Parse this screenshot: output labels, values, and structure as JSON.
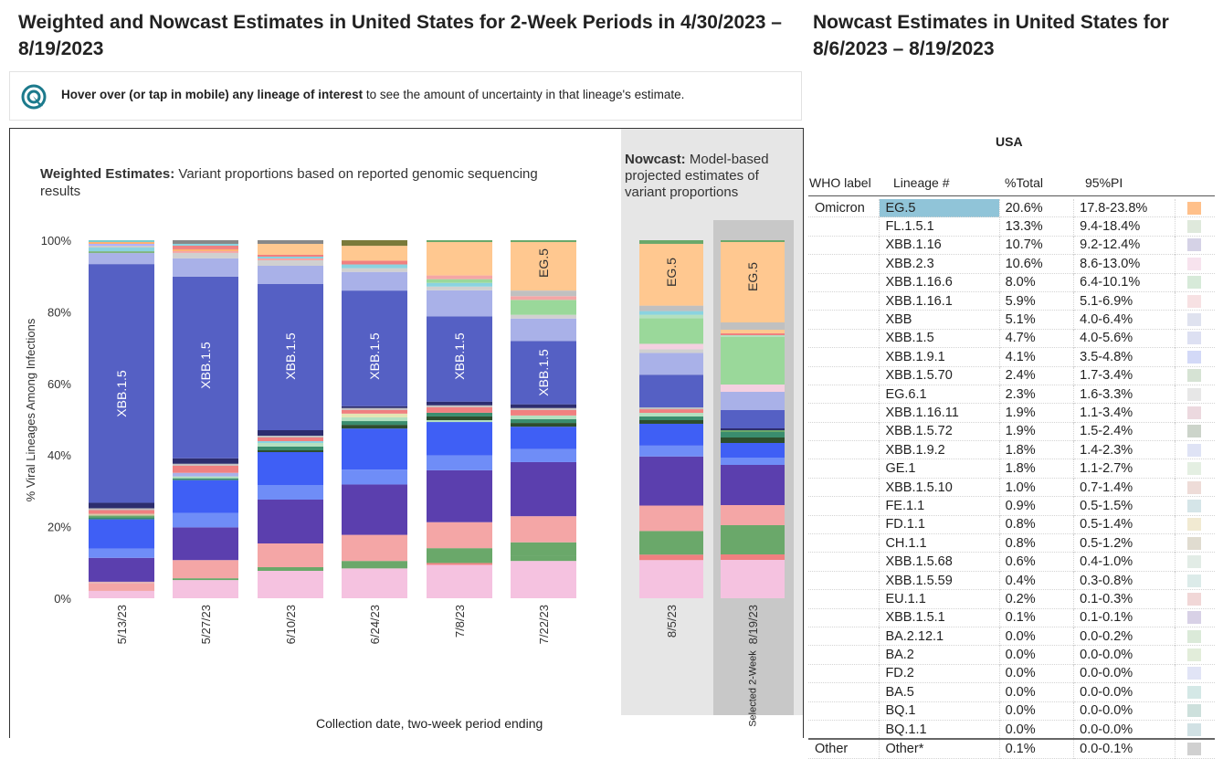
{
  "header": {
    "left_title": "Weighted and Nowcast Estimates in United States for 2-Week Periods in 4/30/2023 – 8/19/2023",
    "right_title": "Nowcast Estimates in United States for 8/6/2023 – 8/19/2023"
  },
  "hover_hint": {
    "bold": "Hover over (or tap in mobile) any lineage of interest",
    "rest": " to see the amount of uncertainty in that lineage's estimate."
  },
  "chart_data": {
    "type": "bar",
    "stacked": true,
    "title": "Weighted Estimates: Variant proportions based on reported genomic sequencing results",
    "weighted_title_bold": "Weighted Estimates:",
    "weighted_title_rest": " Variant proportions based on reported genomic sequencing results",
    "nowcast_title_bold": "Nowcast:",
    "nowcast_title_rest": " Model-based projected estimates of variant proportions",
    "xlabel": "Collection date, two-week period ending",
    "ylabel": "% Viral Lineages Among Infections",
    "ylim": [
      0,
      100
    ],
    "yticks": [
      "0%",
      "20%",
      "40%",
      "60%",
      "80%",
      "100%"
    ],
    "selected_label": "Selected 2-Week",
    "categories": [
      "5/13/23",
      "5/27/23",
      "6/10/23",
      "6/24/23",
      "7/8/23",
      "7/22/23",
      "8/5/23",
      "8/19/23"
    ],
    "nowcast_categories": [
      "8/5/23",
      "8/19/23"
    ],
    "bars": [
      {
        "label": "5/13/23",
        "segments": [
          [
            "#f5c2e0",
            2
          ],
          [
            "#f4a6a6",
            2
          ],
          [
            "#e5b3b3",
            0.5
          ],
          [
            "#5b3fae",
            6.5
          ],
          [
            "#6f8df7",
            2.5
          ],
          [
            "#3f5ff5",
            8
          ],
          [
            "#3a8d6e",
            0.5
          ],
          [
            "#6aa86a",
            0.5
          ],
          [
            "#d9c8a8",
            0.5
          ],
          [
            "#f08080",
            1
          ],
          [
            "#c0c0c0",
            0.5
          ],
          [
            "#2d2d6e",
            1.5
          ],
          [
            "#5560c4",
            65
          ],
          [
            "#a9b1e8",
            3
          ],
          [
            "#7fb47f",
            0.5
          ],
          [
            "#8ad3e0",
            1
          ],
          [
            "#cccccc",
            0.5
          ],
          [
            "#b0b0ff",
            0.5
          ],
          [
            "#ffb070",
            0.5
          ],
          [
            "#7cc",
            0.5
          ]
        ],
        "inner_label": "XBB.1.5"
      },
      {
        "label": "5/27/23",
        "segments": [
          [
            "#f5c2e0",
            5
          ],
          [
            "#6aa86a",
            0.5
          ],
          [
            "#f4a6a6",
            5
          ],
          [
            "#5b3fae",
            9
          ],
          [
            "#6f8df7",
            4
          ],
          [
            "#3f5ff5",
            9
          ],
          [
            "#3a8d6e",
            0.5
          ],
          [
            "#b3e0c0",
            0.5
          ],
          [
            "#a9b1e8",
            1
          ],
          [
            "#f08080",
            2
          ],
          [
            "#c0c0c0",
            0.5
          ],
          [
            "#2d2d6e",
            1.5
          ],
          [
            "#5560c4",
            50
          ],
          [
            "#a9b1e8",
            5
          ],
          [
            "#d0d0d0",
            1.5
          ],
          [
            "#f4a6a6",
            0.5
          ],
          [
            "#ffb070",
            0.5
          ],
          [
            "#f08080",
            1
          ],
          [
            "#8ad3e0",
            0.5
          ],
          [
            "#888",
            1
          ]
        ],
        "inner_label": "XBB.1.5"
      },
      {
        "label": "6/10/23",
        "segments": [
          [
            "#f5c2e0",
            7.5
          ],
          [
            "#6aa86a",
            1
          ],
          [
            "#f4a6a6",
            6.5
          ],
          [
            "#5b3fae",
            12
          ],
          [
            "#6f8df7",
            4
          ],
          [
            "#3f5ff5",
            9
          ],
          [
            "#2d4d2d",
            0.5
          ],
          [
            "#3a8d6e",
            1
          ],
          [
            "#b3e0c0",
            1
          ],
          [
            "#8ad3e0",
            0.5
          ],
          [
            "#f08080",
            1
          ],
          [
            "#c0c0c0",
            0.5
          ],
          [
            "#2d2d6e",
            1.5
          ],
          [
            "#5560c4",
            40
          ],
          [
            "#a9b1e8",
            5
          ],
          [
            "#d0d0d0",
            1.5
          ],
          [
            "#f4a6a6",
            0.5
          ],
          [
            "#8ad3e0",
            0.5
          ],
          [
            "#f08080",
            0.5
          ],
          [
            "#ffc890",
            3
          ],
          [
            "#888",
            1
          ]
        ],
        "inner_label": "XBB.1.5"
      },
      {
        "label": "6/24/23",
        "segments": [
          [
            "#f5c2e0",
            8
          ],
          [
            "#6aa86a",
            2
          ],
          [
            "#f4a6a6",
            7
          ],
          [
            "#5b3fae",
            13.5
          ],
          [
            "#6f8df7",
            4
          ],
          [
            "#3f5ff5",
            11
          ],
          [
            "#2d4d2d",
            1
          ],
          [
            "#3a8d6e",
            1
          ],
          [
            "#b3e0c0",
            1
          ],
          [
            "#e5e5b3",
            1
          ],
          [
            "#f08080",
            1
          ],
          [
            "#c0c0c0",
            0.5
          ],
          [
            "#2d2d6e",
            0.5
          ],
          [
            "#5560c4",
            31
          ],
          [
            "#a9b1e8",
            5
          ],
          [
            "#d0d0d0",
            1
          ],
          [
            "#8ad3e0",
            1
          ],
          [
            "#f08080",
            1
          ],
          [
            "#ffc890",
            4
          ],
          [
            "#7a7a3a",
            1.5
          ]
        ],
        "inner_label": "XBB.1.5"
      },
      {
        "label": "7/8/23",
        "segments": [
          [
            "#f5c2e0",
            9
          ],
          [
            "#f08080",
            0.5
          ],
          [
            "#6aa86a",
            4
          ],
          [
            "#f4a6a6",
            7
          ],
          [
            "#5b3fae",
            14
          ],
          [
            "#6f8df7",
            4
          ],
          [
            "#3f5ff5",
            9
          ],
          [
            "#b3e0c0",
            0.5
          ],
          [
            "#2d4d2d",
            1
          ],
          [
            "#3a8d6e",
            1
          ],
          [
            "#f08080",
            1.5
          ],
          [
            "#c0c0c0",
            0.5
          ],
          [
            "#2d2d6e",
            1
          ],
          [
            "#5560c4",
            23
          ],
          [
            "#a9b1e8",
            7
          ],
          [
            "#d0d0d0",
            1
          ],
          [
            "#8ad3e0",
            1
          ],
          [
            "#9ad89a",
            1
          ],
          [
            "#f4a6a6",
            1
          ],
          [
            "#ffc890",
            9
          ],
          [
            "#6aa86a",
            0.5
          ]
        ],
        "inner_label": "XBB.1.5"
      },
      {
        "label": "7/22/23",
        "segments": [
          [
            "#f5c2e0",
            10
          ],
          [
            "#6aa86a",
            1.5
          ],
          [
            "#6aa86a",
            3.5
          ],
          [
            "#f4a6a6",
            7
          ],
          [
            "#5b3fae",
            14.5
          ],
          [
            "#6f8df7",
            3.5
          ],
          [
            "#3f5ff5",
            6
          ],
          [
            "#2d4d2d",
            1
          ],
          [
            "#3a8d6e",
            1
          ],
          [
            "#b3e0c0",
            1
          ],
          [
            "#f08080",
            1.5
          ],
          [
            "#c0c0c0",
            0.5
          ],
          [
            "#2d2d6e",
            1
          ],
          [
            "#5560c4",
            17
          ],
          [
            "#a9b1e8",
            6
          ],
          [
            "#d0d0d0",
            1
          ],
          [
            "#9ad89a",
            4
          ],
          [
            "#f4a6a6",
            1
          ],
          [
            "#c0c0c0",
            1.5
          ],
          [
            "#ffc890",
            13
          ],
          [
            "#6aa86a",
            0.5
          ]
        ],
        "inner_label": "XBB.1.5",
        "top_label": "EG.5"
      },
      {
        "label": "8/5/23",
        "segments": [
          [
            "#f5c2e0",
            10.5
          ],
          [
            "#f08080",
            1.5
          ],
          [
            "#6aa86a",
            6.5
          ],
          [
            "#f4a6a6",
            7
          ],
          [
            "#5b3fae",
            13.5
          ],
          [
            "#6f8df7",
            3
          ],
          [
            "#3f5ff5",
            6
          ],
          [
            "#2d4d2d",
            1
          ],
          [
            "#3a8d6e",
            1
          ],
          [
            "#b3e0c0",
            1
          ],
          [
            "#f08080",
            1
          ],
          [
            "#c0c0c0",
            0.5
          ],
          [
            "#5560c4",
            9
          ],
          [
            "#a9b1e8",
            6
          ],
          [
            "#d0d0d0",
            1
          ],
          [
            "#f4d0e0",
            1.5
          ],
          [
            "#9ad89a",
            7
          ],
          [
            "#b3e0c0",
            1
          ],
          [
            "#8ad3e0",
            1
          ],
          [
            "#c0c0c0",
            1.5
          ],
          [
            "#ffc890",
            17
          ],
          [
            "#6aa86a",
            1
          ]
        ],
        "top_label": "EG.5"
      },
      {
        "label": "8/19/23",
        "segments": [
          [
            "#f5c2e0",
            10.5
          ],
          [
            "#f08080",
            1.5
          ],
          [
            "#6aa86a",
            8
          ],
          [
            "#f4a6a6",
            5.5
          ],
          [
            "#5b3fae",
            11
          ],
          [
            "#6f8df7",
            2
          ],
          [
            "#3f5ff5",
            4
          ],
          [
            "#2d4d2d",
            1.5
          ],
          [
            "#3a8d6e",
            1.5
          ],
          [
            "#6aa86a",
            0.5
          ],
          [
            "#2d2d6e",
            0.5
          ],
          [
            "#5560c4",
            5
          ],
          [
            "#a9b1e8",
            5
          ],
          [
            "#f4d0e0",
            2
          ],
          [
            "#9ad89a",
            13
          ],
          [
            "#b3e0c0",
            0.5
          ],
          [
            "#f08080",
            0.5
          ],
          [
            "#ffc890",
            1
          ],
          [
            "#c0c0c0",
            2
          ],
          [
            "#ffc890",
            22
          ],
          [
            "#6aa86a",
            0.5
          ]
        ],
        "top_label": "EG.5"
      }
    ]
  },
  "table": {
    "region": "USA",
    "headers": [
      "WHO label",
      "Lineage #",
      "%Total",
      "95%PI"
    ],
    "rows": [
      {
        "who": "Omicron",
        "lineage": "EG.5",
        "total": "20.6%",
        "pi": "17.8-23.8%",
        "color": "#ffc08a",
        "highlight": true
      },
      {
        "who": "",
        "lineage": "FL.1.5.1",
        "total": "13.3%",
        "pi": "9.4-18.4%",
        "color": "#dfe9dc"
      },
      {
        "who": "",
        "lineage": "XBB.1.16",
        "total": "10.7%",
        "pi": "9.2-12.4%",
        "color": "#d5d2e6"
      },
      {
        "who": "",
        "lineage": "XBB.2.3",
        "total": "10.6%",
        "pi": "8.6-13.0%",
        "color": "#f7e3ee"
      },
      {
        "who": "",
        "lineage": "XBB.1.16.6",
        "total": "8.0%",
        "pi": "6.4-10.1%",
        "color": "#d7ead9"
      },
      {
        "who": "",
        "lineage": "XBB.1.16.1",
        "total": "5.9%",
        "pi": "5.1-6.9%",
        "color": "#f7e1e3"
      },
      {
        "who": "",
        "lineage": "XBB",
        "total": "5.1%",
        "pi": "4.0-6.4%",
        "color": "#dfe2ef"
      },
      {
        "who": "",
        "lineage": "XBB.1.5",
        "total": "4.7%",
        "pi": "4.0-5.6%",
        "color": "#dde0f2"
      },
      {
        "who": "",
        "lineage": "XBB.1.9.1",
        "total": "4.1%",
        "pi": "3.5-4.8%",
        "color": "#d3d9f7"
      },
      {
        "who": "",
        "lineage": "XBB.1.5.70",
        "total": "2.4%",
        "pi": "1.7-3.4%",
        "color": "#d6e3d4"
      },
      {
        "who": "",
        "lineage": "EG.6.1",
        "total": "2.3%",
        "pi": "1.6-3.3%",
        "color": "#e7e7e7"
      },
      {
        "who": "",
        "lineage": "XBB.1.16.11",
        "total": "1.9%",
        "pi": "1.1-3.4%",
        "color": "#ecd9df"
      },
      {
        "who": "",
        "lineage": "XBB.1.5.72",
        "total": "1.9%",
        "pi": "1.5-2.4%",
        "color": "#ccd4ca"
      },
      {
        "who": "",
        "lineage": "XBB.1.9.2",
        "total": "1.8%",
        "pi": "1.4-2.3%",
        "color": "#dfe3f5"
      },
      {
        "who": "",
        "lineage": "GE.1",
        "total": "1.8%",
        "pi": "1.1-2.7%",
        "color": "#e4efe2"
      },
      {
        "who": "",
        "lineage": "XBB.1.5.10",
        "total": "1.0%",
        "pi": "0.7-1.4%",
        "color": "#eedcd8"
      },
      {
        "who": "",
        "lineage": "FE.1.1",
        "total": "0.9%",
        "pi": "0.5-1.5%",
        "color": "#d5e5e8"
      },
      {
        "who": "",
        "lineage": "FD.1.1",
        "total": "0.8%",
        "pi": "0.5-1.4%",
        "color": "#f1ead2"
      },
      {
        "who": "",
        "lineage": "CH.1.1",
        "total": "0.8%",
        "pi": "0.5-1.2%",
        "color": "#e0dcd0"
      },
      {
        "who": "",
        "lineage": "XBB.1.5.68",
        "total": "0.6%",
        "pi": "0.4-1.0%",
        "color": "#e2ece6"
      },
      {
        "who": "",
        "lineage": "XBB.1.5.59",
        "total": "0.4%",
        "pi": "0.3-0.8%",
        "color": "#dcebe9"
      },
      {
        "who": "",
        "lineage": "EU.1.1",
        "total": "0.2%",
        "pi": "0.1-0.3%",
        "color": "#f1d7d7"
      },
      {
        "who": "",
        "lineage": "XBB.1.5.1",
        "total": "0.1%",
        "pi": "0.1-0.1%",
        "color": "#d8d1e6"
      },
      {
        "who": "",
        "lineage": "BA.2.12.1",
        "total": "0.0%",
        "pi": "0.0-0.2%",
        "color": "#dbead9"
      },
      {
        "who": "",
        "lineage": "BA.2",
        "total": "0.0%",
        "pi": "0.0-0.0%",
        "color": "#e2edda"
      },
      {
        "who": "",
        "lineage": "FD.2",
        "total": "0.0%",
        "pi": "0.0-0.0%",
        "color": "#e1e4f6"
      },
      {
        "who": "",
        "lineage": "BA.5",
        "total": "0.0%",
        "pi": "0.0-0.0%",
        "color": "#d4e8e6"
      },
      {
        "who": "",
        "lineage": "BQ.1",
        "total": "0.0%",
        "pi": "0.0-0.0%",
        "color": "#cde0dc"
      },
      {
        "who": "",
        "lineage": "BQ.1.1",
        "total": "0.0%",
        "pi": "0.0-0.0%",
        "color": "#d1e1e4"
      },
      {
        "who": "Other",
        "lineage": "Other*",
        "total": "0.1%",
        "pi": "0.0-0.1%",
        "color": "#d0d0d0",
        "other": true
      }
    ]
  },
  "colors": {
    "highlight": "#90c4d8"
  }
}
